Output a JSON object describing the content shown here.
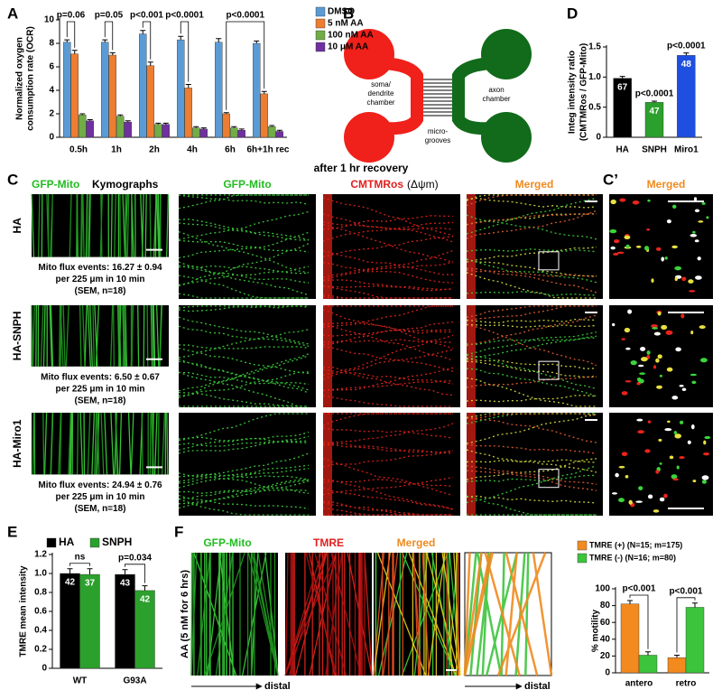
{
  "panel_letters": [
    "A",
    "B",
    "C",
    "D",
    "C’",
    "E",
    "F"
  ],
  "chart_data": [
    {
      "type": "bar",
      "ylabel": [
        "Normalized oxygen",
        "consumption rate (OCR)"
      ],
      "categories": [
        "0.5h",
        "1h",
        "2h",
        "4h",
        "6h",
        "6h+1h rec"
      ],
      "series": [
        {
          "name": "DMSO",
          "color": "#5b9bd5",
          "values": [
            8.1,
            8.1,
            8.8,
            8.3,
            8.1,
            8.0
          ],
          "errors": [
            0.2,
            0.2,
            0.3,
            0.3,
            0.3,
            0.2
          ]
        },
        {
          "name": "5 nM AA",
          "color": "#ed7d31",
          "values": [
            7.1,
            7.0,
            6.1,
            4.2,
            2.0,
            3.7
          ],
          "errors": [
            0.3,
            0.2,
            0.3,
            0.3,
            0.1,
            0.2
          ]
        },
        {
          "name": "100 nM AA",
          "color": "#70ad47",
          "values": [
            1.9,
            1.8,
            1.1,
            0.8,
            0.8,
            0.9
          ],
          "errors": [
            0.1,
            0.1,
            0.1,
            0.1,
            0.1,
            0.1
          ]
        },
        {
          "name": "10 μM AA",
          "color": "#7030a0",
          "values": [
            1.4,
            1.3,
            1.1,
            0.7,
            0.6,
            0.5
          ],
          "errors": [
            0.1,
            0.1,
            0.1,
            0.1,
            0.1,
            0.1
          ]
        }
      ],
      "ylim": [
        0,
        10
      ],
      "yticks": [
        0,
        2,
        4,
        6,
        8,
        10
      ],
      "annotations": [
        "p=0.06",
        "p=0.05",
        "p<0.001",
        "p<0.0001",
        "p<0.0001"
      ],
      "legend": "right"
    },
    {
      "type": "bar",
      "ylabel": [
        "Integ intensity ratio",
        "(CMTMRos / GFP-Mito)"
      ],
      "categories": [
        "HA",
        "SNPH",
        "Miro1"
      ],
      "values": [
        0.98,
        0.58,
        1.36
      ],
      "errors": [
        0.03,
        0.02,
        0.04
      ],
      "colors": [
        "#000000",
        "#2ca02c",
        "#1f4fe0"
      ],
      "n_labels": [
        67,
        47,
        48
      ],
      "ylim": [
        0,
        1.5
      ],
      "yticks": [
        0,
        0.5,
        {
          "value": 1,
          "label": "1.0"
        },
        1.5
      ],
      "annotations": [
        "p<0.0001",
        "p<0.0001"
      ]
    },
    {
      "type": "bar",
      "ylabel": [
        "TMRE mean intensity"
      ],
      "categories": [
        "WT",
        "G93A"
      ],
      "series": [
        {
          "name": "HA",
          "color": "#000000",
          "values": [
            1.0,
            0.99
          ],
          "errors": [
            0.05,
            0.05
          ],
          "n_labels": [
            42,
            43
          ]
        },
        {
          "name": "SNPH",
          "color": "#2ca02c",
          "values": [
            0.99,
            0.82
          ],
          "errors": [
            0.06,
            0.05
          ],
          "n_labels": [
            37,
            42
          ]
        }
      ],
      "ylim": [
        0,
        1.2
      ],
      "yticks": [
        0,
        0.2,
        0.4,
        0.6,
        0.8,
        {
          "value": 1,
          "label": "1.0"
        },
        1.2
      ],
      "annotations": [
        "ns",
        "p=0.034"
      ],
      "legend": "top"
    },
    {
      "type": "bar",
      "ylabel": [
        "% motility"
      ],
      "categories": [
        "antero",
        "retro"
      ],
      "series": [
        {
          "name": "TMRE (+) (N=15; m=175)",
          "color": "#f28a1e",
          "values": [
            82,
            18
          ],
          "errors": [
            4,
            3
          ]
        },
        {
          "name": "TMRE (-) (N=16; m=80)",
          "color": "#3cc43c",
          "values": [
            21,
            78
          ],
          "errors": [
            4,
            5
          ]
        }
      ],
      "ylim": [
        0,
        100
      ],
      "yticks": [
        0,
        20,
        40,
        60,
        80,
        100
      ],
      "annotations": [
        "p<0.001",
        "p<0.001"
      ],
      "legend": "top"
    }
  ],
  "diagram": {
    "left_chamber": [
      "soma/",
      "dendrite",
      "chamber"
    ],
    "right_chamber": [
      "axon",
      "chamber"
    ],
    "grooves": [
      "micro-",
      "grooves"
    ]
  },
  "panel_c": {
    "title": "after 1 hr recovery",
    "headers": [
      "GFP-Mito",
      "Kymographs",
      "GFP-Mito",
      "CMTMRos",
      "(Δψm)",
      "Merged",
      "Merged"
    ],
    "rows": [
      {
        "label": "HA",
        "flux": [
          "Mito flux events: 16.27 ± 0.94",
          "per 225 μm in 10 min",
          "(SEM, n=18)"
        ]
      },
      {
        "label": "HA-SNPH",
        "flux": [
          "Mito flux events: 6.50 ± 0.67",
          "per 225 μm in 10 min",
          "(SEM, n=18)"
        ]
      },
      {
        "label": "HA-Miro1",
        "flux": [
          "Mito flux events: 24.94 ± 0.76",
          "per 225 μm in 10 min",
          "(SEM, n=18)"
        ]
      }
    ]
  },
  "panel_f": {
    "headers": [
      "GFP-Mito",
      "TMRE",
      "Merged"
    ],
    "ylabel": "AA (5 nM for 6 hrs)",
    "axis": "distal"
  }
}
